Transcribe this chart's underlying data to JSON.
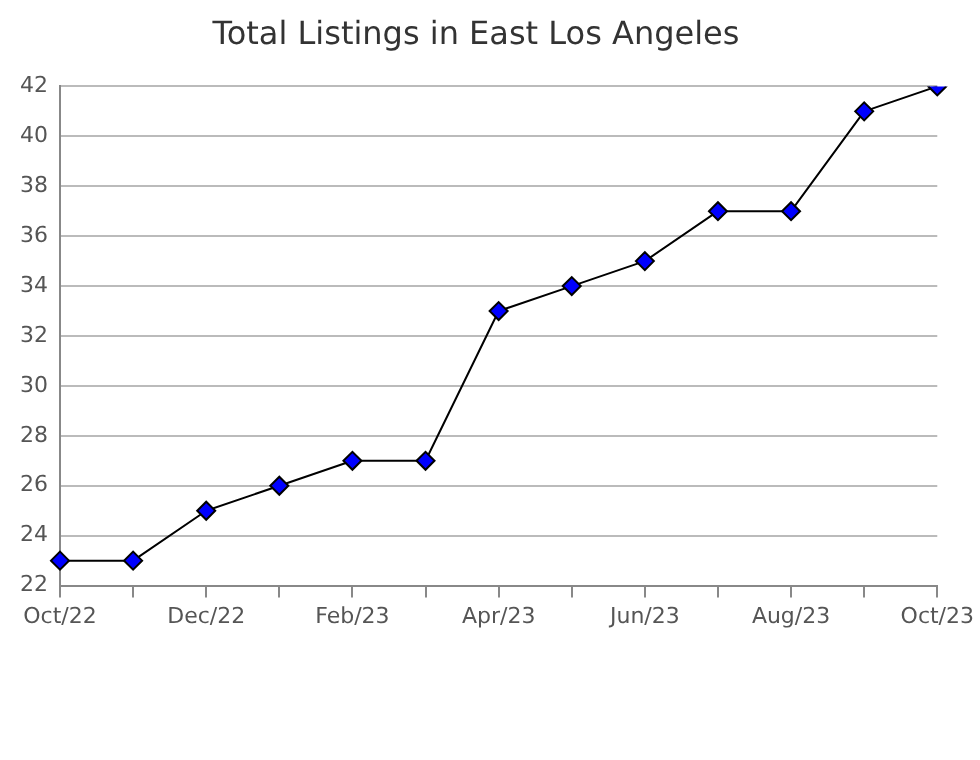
{
  "chart_data": {
    "type": "line",
    "title": "Total Listings in East Los Angeles",
    "categories": [
      "Oct/22",
      null,
      "Dec/22",
      null,
      "Feb/23",
      null,
      "Apr/23",
      null,
      "Jun/23",
      null,
      "Aug/23",
      null,
      "Oct/23"
    ],
    "series": [
      {
        "color": "#0000ff",
        "values": [
          23,
          23,
          25,
          26,
          27,
          27,
          33,
          34,
          35,
          37,
          37,
          41,
          42
        ]
      }
    ],
    "ylim": [
      22,
      42
    ],
    "yticks": [
      22,
      24,
      26,
      28,
      30,
      32,
      34,
      36,
      38,
      40,
      42
    ],
    "grid": "y",
    "legend": false,
    "marker": "diamond",
    "line_style": "solid"
  }
}
